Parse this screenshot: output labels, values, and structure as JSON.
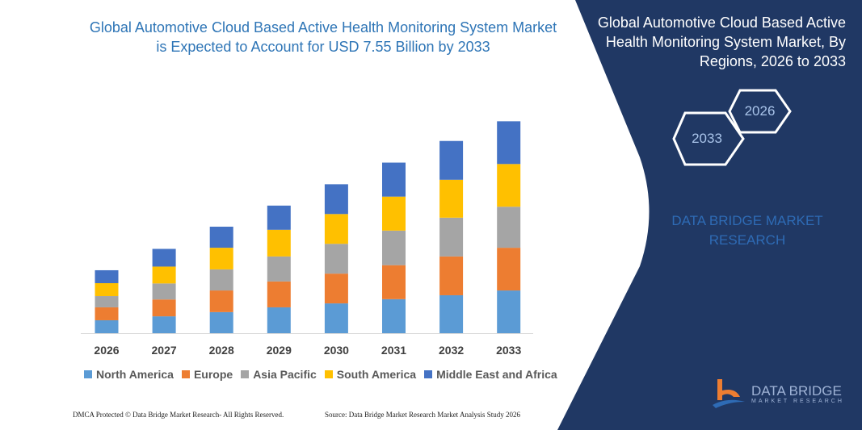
{
  "title": "Global Automotive Cloud Based Active Health Monitoring System Market is Expected to Account for USD 7.55 Billion by 2033",
  "side_panel": {
    "title": "Global Automotive Cloud Based Active Health Monitoring System Market, By Regions, 2026 to 2033",
    "hex_start": "2026",
    "hex_end": "2033",
    "watermark": "DATA BRIDGE MARKET RESEARCH",
    "logo_name": "DATA BRIDGE",
    "logo_sub": "MARKET RESEARCH",
    "color": "#203864"
  },
  "footer": {
    "left": "DMCA Protected © Data Bridge Market Research-  All Rights Reserved.",
    "right": "Source: Data Bridge Market Research  Market Analysis Study 2026"
  },
  "chart_data": {
    "type": "bar",
    "stacked": true,
    "categories": [
      "2026",
      "2027",
      "2028",
      "2029",
      "2030",
      "2031",
      "2032",
      "2033"
    ],
    "series": [
      {
        "name": "North America",
        "color": "#5b9bd5",
        "values": [
          0.46,
          0.6,
          0.75,
          0.92,
          1.06,
          1.21,
          1.35,
          1.52
        ]
      },
      {
        "name": "Europe",
        "color": "#ed7d31",
        "values": [
          0.46,
          0.6,
          0.77,
          0.92,
          1.06,
          1.21,
          1.38,
          1.52
        ]
      },
      {
        "name": "Asia Pacific",
        "color": "#a5a5a5",
        "values": [
          0.4,
          0.57,
          0.75,
          0.89,
          1.06,
          1.23,
          1.38,
          1.46
        ]
      },
      {
        "name": "South America",
        "color": "#ffc000",
        "values": [
          0.46,
          0.6,
          0.77,
          0.95,
          1.06,
          1.21,
          1.35,
          1.52
        ]
      },
      {
        "name": "Middle East and Africa",
        "color": "#4472c4",
        "values": [
          0.46,
          0.63,
          0.75,
          0.86,
          1.06,
          1.21,
          1.38,
          1.52
        ]
      }
    ],
    "grid": false,
    "legend": "bottom"
  }
}
